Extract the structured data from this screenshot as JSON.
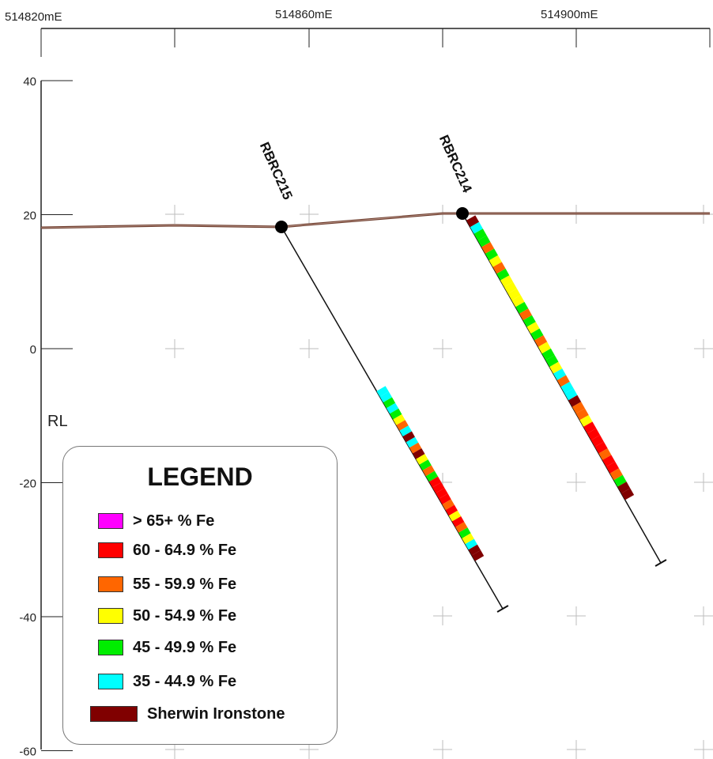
{
  "easting_labels": [
    "514820mE",
    "514860mE",
    "514900mE"
  ],
  "rl_label": "RL",
  "rl_ticks": [
    {
      "value": 40,
      "label": "40"
    },
    {
      "value": 20,
      "label": "20"
    },
    {
      "value": 0,
      "label": "0"
    },
    {
      "value": -20,
      "label": "-20"
    },
    {
      "value": -40,
      "label": "-40"
    },
    {
      "value": -60,
      "label": "-60"
    }
  ],
  "holes": [
    {
      "name": "RBRC215"
    },
    {
      "name": "RBRC214"
    }
  ],
  "legend": {
    "title": "LEGEND",
    "items": [
      {
        "label": "> 65+ % Fe",
        "color": "#ff00ff"
      },
      {
        "label": "60 - 64.9 % Fe",
        "color": "#ff0000"
      },
      {
        "label": "55 - 59.9 % Fe",
        "color": "#ff6600"
      },
      {
        "label": "50 - 54.9 % Fe",
        "color": "#ffff00"
      },
      {
        "label": "45 - 49.9 % Fe",
        "color": "#00ee00"
      },
      {
        "label": "35 - 44.9 % Fe",
        "color": "#00ffff"
      },
      {
        "label": "Sherwin Ironstone",
        "color": "#800000"
      }
    ]
  }
}
